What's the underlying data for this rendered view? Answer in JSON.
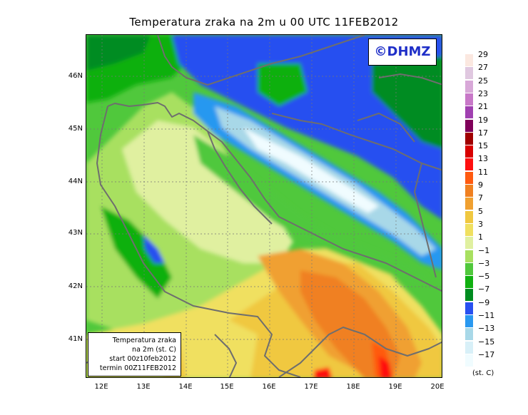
{
  "title": "Temperatura zraka na 2m u 00 UTC 11FEB2012",
  "logo": "©DHMZ",
  "infobox": {
    "line1": "Temperatura zraka",
    "line2": "na 2m (st. C)",
    "line3": "start 00z10feb2012",
    "line4": "termin 00Z11FEB2012"
  },
  "axes": {
    "y_labels": [
      "46N",
      "45N",
      "44N",
      "43N",
      "42N",
      "41N"
    ],
    "x_labels": [
      "12E",
      "13E",
      "14E",
      "15E",
      "16E",
      "17E",
      "18E",
      "19E",
      "20E"
    ]
  },
  "legend": {
    "unit": "(st. C)",
    "labels": [
      "29",
      "27",
      "25",
      "23",
      "21",
      "19",
      "17",
      "15",
      "13",
      "11",
      "9",
      "7",
      "5",
      "3",
      "1",
      "−1",
      "−3",
      "−5",
      "−7",
      "−9",
      "−11",
      "−13",
      "−15",
      "−17"
    ],
    "colors": [
      "#fbe8e0",
      "#e0c8e0",
      "#d8a8d8",
      "#c878c8",
      "#a040b0",
      "#80005a",
      "#a00000",
      "#d80000",
      "#ff1010",
      "#ff5a10",
      "#f08020",
      "#f0a030",
      "#f0c840",
      "#f0e060",
      "#e0f0a0",
      "#a8e060",
      "#50c83c",
      "#10b010",
      "#008c20",
      "#2850f0",
      "#2898f0",
      "#a8d8e8",
      "#d8f0f8",
      "#f0fcff"
    ]
  }
}
